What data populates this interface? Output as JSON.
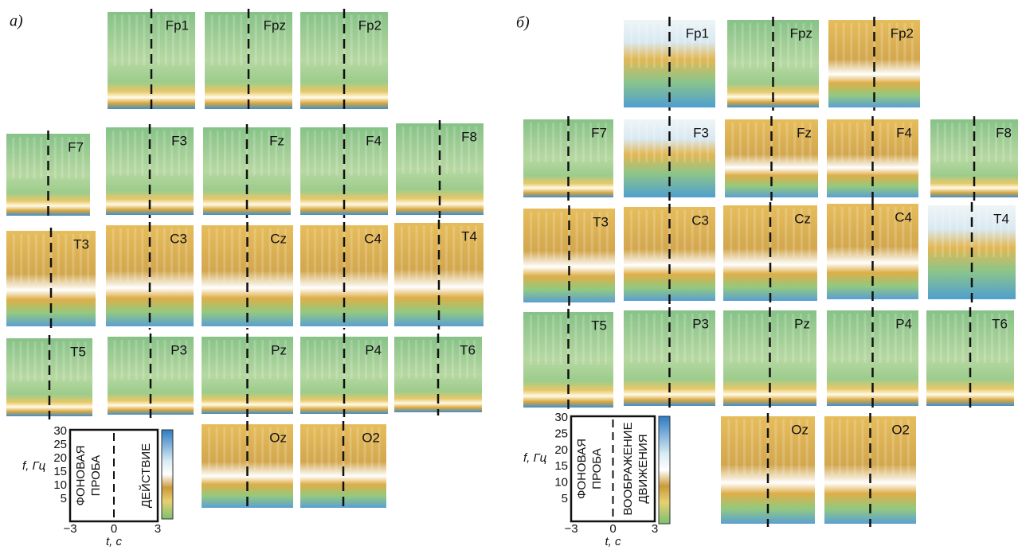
{
  "panels": [
    {
      "label": "а)",
      "electrodes": [
        "Fp1",
        "Fpz",
        "Fp2",
        "F7",
        "F3",
        "Fz",
        "F4",
        "F8",
        "T3",
        "C3",
        "Cz",
        "C4",
        "T4",
        "T5",
        "P3",
        "Pz",
        "P4",
        "T6",
        "Oz",
        "O2"
      ],
      "legend": {
        "y_axis_label": "f, Гц",
        "y_ticks": [
          "30",
          "25",
          "20",
          "15",
          "10",
          "5"
        ],
        "x_axis_label": "t, c",
        "x_ticks": [
          "−3",
          "0",
          "3"
        ],
        "left_text": [
          "ФОНОВАЯ",
          "ПРОБА"
        ],
        "right_text": [
          "ДЕЙСТВИЕ"
        ]
      }
    },
    {
      "label": "б)",
      "electrodes": [
        "Fp1",
        "Fpz",
        "Fp2",
        "F7",
        "F3",
        "Fz",
        "F4",
        "F8",
        "T3",
        "C3",
        "Cz",
        "C4",
        "T4",
        "T5",
        "P3",
        "Pz",
        "P4",
        "T6",
        "Oz",
        "O2"
      ],
      "legend": {
        "y_axis_label": "f, Гц",
        "y_ticks": [
          "30",
          "25",
          "20",
          "15",
          "10",
          "5"
        ],
        "x_axis_label": "t, c",
        "x_ticks": [
          "−3",
          "0",
          "3"
        ],
        "left_text": [
          "ФОНОВАЯ",
          "ПРОБА"
        ],
        "right_text": [
          "ВООБРАЖЕНИЕ",
          "ДВИЖЕНИЯ"
        ]
      }
    }
  ]
}
